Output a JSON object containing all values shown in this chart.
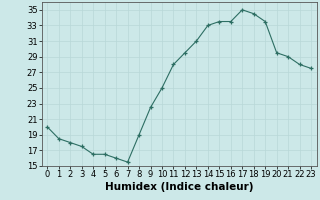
{
  "x": [
    0,
    1,
    2,
    3,
    4,
    5,
    6,
    7,
    8,
    9,
    10,
    11,
    12,
    13,
    14,
    15,
    16,
    17,
    18,
    19,
    20,
    21,
    22,
    23
  ],
  "y": [
    20.0,
    18.5,
    18.0,
    17.5,
    16.5,
    16.5,
    16.0,
    15.5,
    19.0,
    22.5,
    25.0,
    28.0,
    29.5,
    31.0,
    33.0,
    33.5,
    33.5,
    35.0,
    34.5,
    33.5,
    29.5,
    29.0,
    28.0,
    27.5
  ],
  "xlabel": "Humidex (Indice chaleur)",
  "ylim": [
    15,
    36
  ],
  "xlim": [
    -0.5,
    23.5
  ],
  "yticks": [
    15,
    17,
    19,
    21,
    23,
    25,
    27,
    29,
    31,
    33,
    35
  ],
  "xticks": [
    0,
    1,
    2,
    3,
    4,
    5,
    6,
    7,
    8,
    9,
    10,
    11,
    12,
    13,
    14,
    15,
    16,
    17,
    18,
    19,
    20,
    21,
    22,
    23
  ],
  "line_color": "#2d6e63",
  "marker_color": "#2d6e63",
  "bg_color": "#cce8e8",
  "grid_color": "#b8d8d8",
  "xlabel_fontsize": 7.5,
  "tick_fontsize": 6.0
}
